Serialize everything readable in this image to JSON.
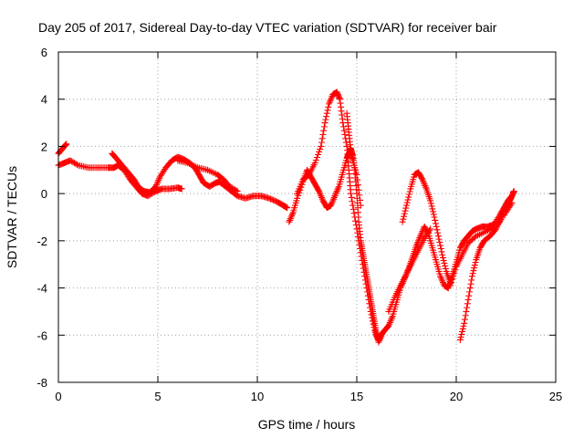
{
  "chart_data": {
    "type": "scatter",
    "title": "Day 205 of 2017, Sidereal Day-to-day VTEC variation (SDTVAR) for receiver bair",
    "xlabel": "GPS time / hours",
    "ylabel": "SDTVAR / TECUs",
    "xlim": [
      0,
      25
    ],
    "ylim": [
      -8,
      6
    ],
    "x_ticks": [
      0,
      5,
      10,
      15,
      20,
      25
    ],
    "y_ticks": [
      -8,
      -6,
      -4,
      -2,
      0,
      2,
      4,
      6
    ],
    "x_tick_labels": [
      "0",
      "5",
      "10",
      "15",
      "20",
      "25"
    ],
    "y_tick_labels": [
      "-8",
      "-6",
      "-4",
      "-2",
      "0",
      "2",
      "4",
      "6"
    ],
    "grid": true,
    "marker": "+",
    "color": "#ff0000",
    "series": [
      {
        "name": "trace-1",
        "points": [
          [
            0,
            1.2
          ],
          [
            0.3,
            1.3
          ],
          [
            0.6,
            1.4
          ],
          [
            1.0,
            1.2
          ],
          [
            1.5,
            1.1
          ],
          [
            2.0,
            1.1
          ],
          [
            2.5,
            1.1
          ],
          [
            2.8,
            1.1
          ],
          [
            3.0,
            1.2
          ],
          [
            3.3,
            1.0
          ],
          [
            3.6,
            0.6
          ],
          [
            3.9,
            0.3
          ],
          [
            4.2,
            0.0
          ],
          [
            4.5,
            -0.1
          ],
          [
            4.9,
            0.1
          ],
          [
            5.2,
            0.2
          ],
          [
            5.6,
            0.2
          ],
          [
            6.0,
            0.25
          ],
          [
            6.2,
            0.2
          ]
        ]
      },
      {
        "name": "trace-2",
        "points": [
          [
            0,
            1.7
          ],
          [
            0.15,
            1.85
          ],
          [
            0.3,
            2.0
          ],
          [
            0.4,
            2.1
          ]
        ]
      },
      {
        "name": "trace-3",
        "points": [
          [
            2.7,
            1.7
          ],
          [
            2.9,
            1.5
          ],
          [
            3.2,
            1.2
          ],
          [
            3.5,
            0.9
          ],
          [
            3.8,
            0.6
          ],
          [
            4.0,
            0.3
          ],
          [
            4.3,
            0.1
          ],
          [
            4.6,
            0.05
          ],
          [
            4.9,
            0.3
          ],
          [
            5.1,
            0.7
          ],
          [
            5.4,
            1.1
          ],
          [
            5.7,
            1.4
          ],
          [
            6.0,
            1.55
          ],
          [
            6.3,
            1.45
          ],
          [
            6.6,
            1.3
          ],
          [
            6.9,
            1.05
          ],
          [
            7.1,
            0.75
          ],
          [
            7.3,
            0.45
          ],
          [
            7.6,
            0.3
          ],
          [
            7.9,
            0.45
          ],
          [
            8.1,
            0.5
          ],
          [
            8.4,
            0.3
          ],
          [
            8.7,
            0.1
          ],
          [
            9.0,
            -0.1
          ],
          [
            9.4,
            -0.2
          ],
          [
            9.8,
            -0.1
          ],
          [
            10.2,
            -0.1
          ],
          [
            10.6,
            -0.2
          ],
          [
            11.0,
            -0.35
          ],
          [
            11.3,
            -0.5
          ],
          [
            11.5,
            -0.6
          ]
        ]
      },
      {
        "name": "trace-4",
        "points": [
          [
            6.0,
            1.4
          ],
          [
            6.5,
            1.3
          ],
          [
            7.0,
            1.1
          ],
          [
            7.5,
            1.0
          ],
          [
            8.0,
            0.8
          ],
          [
            8.3,
            0.6
          ],
          [
            8.6,
            0.3
          ],
          [
            9.0,
            0.1
          ]
        ]
      },
      {
        "name": "trace-5",
        "points": [
          [
            11.6,
            -1.2
          ],
          [
            11.8,
            -0.8
          ],
          [
            12.0,
            -0.2
          ],
          [
            12.3,
            0.5
          ],
          [
            12.5,
            1.0
          ],
          [
            12.7,
            0.7
          ],
          [
            12.9,
            0.4
          ],
          [
            13.1,
            0.1
          ],
          [
            13.3,
            -0.3
          ],
          [
            13.5,
            -0.6
          ],
          [
            13.7,
            -0.5
          ],
          [
            13.9,
            -0.1
          ],
          [
            14.1,
            0.3
          ],
          [
            14.3,
            0.9
          ],
          [
            14.5,
            1.5
          ],
          [
            14.6,
            1.7
          ],
          [
            14.7,
            1.9
          ],
          [
            14.8,
            1.6
          ],
          [
            14.9,
            1.0
          ],
          [
            15.0,
            0.0
          ],
          [
            15.1,
            -1.2
          ],
          [
            15.2,
            -2.0
          ],
          [
            15.3,
            -2.5
          ],
          [
            15.4,
            -3.0
          ],
          [
            15.5,
            -3.5
          ],
          [
            15.6,
            -4.0
          ],
          [
            15.7,
            -4.5
          ],
          [
            15.8,
            -5.0
          ],
          [
            15.9,
            -5.5
          ],
          [
            16.0,
            -6.0
          ],
          [
            16.1,
            -6.2
          ],
          [
            16.2,
            -6.0
          ],
          [
            16.4,
            -5.8
          ],
          [
            16.6,
            -5.6
          ],
          [
            16.8,
            -5.2
          ],
          [
            17.0,
            -4.6
          ],
          [
            17.2,
            -4.0
          ],
          [
            17.4,
            -3.6
          ],
          [
            17.6,
            -3.2
          ],
          [
            17.8,
            -2.7
          ],
          [
            18.0,
            -2.2
          ],
          [
            18.2,
            -1.8
          ],
          [
            18.4,
            -1.4
          ],
          [
            18.6,
            -1.7
          ],
          [
            18.8,
            -2.3
          ],
          [
            19.0,
            -2.9
          ],
          [
            19.2,
            -3.5
          ],
          [
            19.4,
            -3.9
          ],
          [
            19.6,
            -4.0
          ],
          [
            19.8,
            -3.5
          ],
          [
            20.0,
            -2.9
          ],
          [
            20.2,
            -2.3
          ],
          [
            20.4,
            -2.0
          ],
          [
            20.6,
            -1.8
          ],
          [
            20.8,
            -1.6
          ],
          [
            21.0,
            -1.5
          ],
          [
            21.3,
            -1.4
          ],
          [
            21.6,
            -1.4
          ],
          [
            21.9,
            -1.3
          ],
          [
            22.2,
            -0.9
          ],
          [
            22.4,
            -0.6
          ],
          [
            22.6,
            -0.3
          ],
          [
            22.8,
            -0.1
          ]
        ]
      },
      {
        "name": "trace-6",
        "points": [
          [
            12.0,
            0.0
          ],
          [
            12.3,
            0.6
          ],
          [
            12.6,
            0.8
          ],
          [
            12.9,
            1.3
          ],
          [
            13.2,
            2.0
          ],
          [
            13.4,
            3.0
          ],
          [
            13.6,
            3.8
          ],
          [
            13.8,
            4.2
          ],
          [
            14.0,
            4.3
          ],
          [
            14.15,
            4.0
          ],
          [
            14.3,
            3.0
          ],
          [
            14.5,
            2.0
          ],
          [
            14.6,
            1.0
          ],
          [
            14.7,
            0.0
          ],
          [
            14.9,
            -1.0
          ],
          [
            15.1,
            -2.0
          ],
          [
            15.3,
            -3.0
          ],
          [
            15.5,
            -4.0
          ],
          [
            15.7,
            -5.0
          ],
          [
            15.9,
            -5.8
          ],
          [
            16.1,
            -6.3
          ],
          [
            16.3,
            -5.9
          ]
        ]
      },
      {
        "name": "trace-7",
        "points": [
          [
            14.5,
            3.4
          ],
          [
            14.6,
            2.6
          ],
          [
            14.7,
            1.8
          ],
          [
            14.8,
            1.4
          ],
          [
            15.0,
            0.8
          ],
          [
            15.2,
            -0.5
          ]
        ]
      },
      {
        "name": "trace-8",
        "points": [
          [
            17.3,
            -1.2
          ],
          [
            17.5,
            -0.5
          ],
          [
            17.7,
            0.2
          ],
          [
            17.9,
            0.8
          ],
          [
            18.1,
            0.9
          ],
          [
            18.3,
            0.6
          ],
          [
            18.5,
            0.2
          ],
          [
            18.7,
            -0.3
          ],
          [
            18.9,
            -1.0
          ],
          [
            19.1,
            -1.8
          ],
          [
            19.3,
            -2.6
          ],
          [
            19.5,
            -3.3
          ],
          [
            19.7,
            -3.8
          ]
        ]
      },
      {
        "name": "trace-9",
        "points": [
          [
            20.2,
            -6.2
          ],
          [
            20.4,
            -5.5
          ],
          [
            20.6,
            -4.5
          ],
          [
            20.8,
            -3.5
          ],
          [
            21.0,
            -2.8
          ],
          [
            21.2,
            -2.3
          ],
          [
            21.4,
            -2.0
          ],
          [
            21.7,
            -1.8
          ],
          [
            22.0,
            -1.5
          ],
          [
            22.3,
            -1.0
          ],
          [
            22.5,
            -0.6
          ],
          [
            22.7,
            -0.3
          ],
          [
            22.85,
            0.0
          ],
          [
            22.9,
            0.1
          ]
        ]
      },
      {
        "name": "trace-10",
        "points": [
          [
            16.6,
            -5.0
          ],
          [
            16.9,
            -4.4
          ],
          [
            17.2,
            -3.9
          ],
          [
            17.5,
            -3.4
          ],
          [
            17.8,
            -2.9
          ],
          [
            18.1,
            -2.4
          ],
          [
            18.4,
            -1.9
          ],
          [
            18.7,
            -1.5
          ]
        ]
      },
      {
        "name": "trace-11",
        "points": [
          [
            19.7,
            -3.9
          ],
          [
            20.0,
            -3.1
          ],
          [
            20.3,
            -2.6
          ],
          [
            20.6,
            -2.1
          ],
          [
            21.0,
            -1.8
          ],
          [
            21.5,
            -1.6
          ],
          [
            22.0,
            -1.4
          ],
          [
            22.5,
            -0.8
          ],
          [
            22.8,
            -0.4
          ]
        ]
      }
    ]
  }
}
